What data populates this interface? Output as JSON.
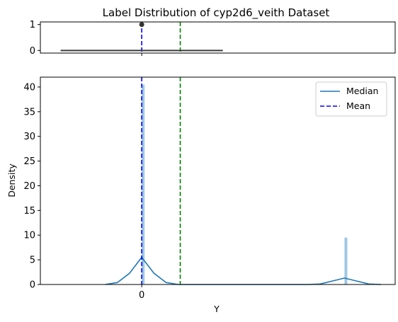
{
  "chart_data": {
    "type": "bar",
    "title": "Label Distribution of cyp2d6_veith Dataset",
    "box_panel": {
      "ylim": [
        -0.1,
        1.1
      ],
      "yticks": [
        "0",
        "1"
      ],
      "box": {
        "whisker_low": -0.4,
        "q1": 0,
        "median": 0,
        "q3": 0,
        "whisker_high": 0.4
      },
      "outlier_y": 1
    },
    "density_panel": {
      "xlabel": "Y",
      "ylabel": "Density",
      "xlim": [
        -0.5,
        1.25
      ],
      "ylim": [
        0,
        42
      ],
      "xticks": [
        "0"
      ],
      "yticks": [
        "0",
        "5",
        "10",
        "15",
        "20",
        "25",
        "30",
        "35",
        "40"
      ],
      "histogram": [
        {
          "x": 0.0,
          "density": 40.5
        },
        {
          "x": 1.0,
          "density": 9.5
        }
      ],
      "kde": [
        {
          "x": -0.18,
          "y": 0.0
        },
        {
          "x": -0.12,
          "y": 0.4
        },
        {
          "x": -0.06,
          "y": 2.3
        },
        {
          "x": 0.0,
          "y": 5.5
        },
        {
          "x": 0.06,
          "y": 2.3
        },
        {
          "x": 0.12,
          "y": 0.4
        },
        {
          "x": 0.18,
          "y": 0.0
        },
        {
          "x": 0.82,
          "y": 0.0
        },
        {
          "x": 0.88,
          "y": 0.1
        },
        {
          "x": 0.94,
          "y": 0.7
        },
        {
          "x": 1.0,
          "y": 1.3
        },
        {
          "x": 1.06,
          "y": 0.7
        },
        {
          "x": 1.12,
          "y": 0.1
        },
        {
          "x": 1.18,
          "y": 0.0
        }
      ],
      "median_x": 0,
      "mean_x": 0.19
    },
    "legend": {
      "position": "top-right",
      "entries": [
        {
          "label": "Median",
          "style": "solid",
          "color": "#1f77b4"
        },
        {
          "label": "Mean",
          "style": "dashed",
          "color": "#0000ff"
        }
      ]
    },
    "colors": {
      "kde": "#1f77b4",
      "hist": "#9ec7e3",
      "median_line": "#0000ff",
      "mean_line": "#008000",
      "box": "#3a3a3a"
    }
  }
}
